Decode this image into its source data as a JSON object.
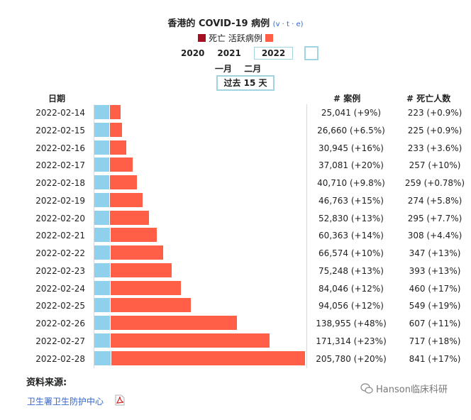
{
  "chart_data": {
    "type": "bar",
    "title": "香港的 COVID-19 病例",
    "title_links": "v · t · e",
    "legend": [
      {
        "label": "死亡",
        "color": "#a50f22"
      },
      {
        "label": "活跃病例",
        "color": "#ff5e47"
      }
    ],
    "recovered_color": "#8fd0ec",
    "years": [
      "2020",
      "2021",
      "2022"
    ],
    "selected_year": "2022",
    "months": [
      "一月",
      "二月"
    ],
    "range_label": "过去 15 天",
    "column_headers": {
      "date": "日期",
      "cases": "# 案例",
      "deaths": "# 死亡人数"
    },
    "dates": [
      "2022-02-14",
      "2022-02-15",
      "2022-02-16",
      "2022-02-17",
      "2022-02-18",
      "2022-02-19",
      "2022-02-20",
      "2022-02-21",
      "2022-02-22",
      "2022-02-23",
      "2022-02-24",
      "2022-02-25",
      "2022-02-26",
      "2022-02-27",
      "2022-02-28"
    ],
    "cases": [
      25041,
      26660,
      30945,
      37081,
      40710,
      46763,
      52830,
      60363,
      66574,
      75248,
      84046,
      94056,
      138955,
      171314,
      205780
    ],
    "recovered": [
      14300,
      14400,
      14500,
      14600,
      14700,
      14800,
      14900,
      15000,
      15100,
      15200,
      15300,
      15400,
      15500,
      15600,
      15700
    ],
    "deaths": [
      223,
      225,
      233,
      257,
      259,
      274,
      295,
      308,
      347,
      393,
      460,
      549,
      607,
      717,
      841
    ],
    "cases_text": [
      "25,041 (+9%)",
      "26,660 (+6.5%)",
      "30,945 (+16%)",
      "37,081 (+20%)",
      "40,710 (+9.8%)",
      "46,763 (+15%)",
      "52,830 (+13%)",
      "60,363 (+14%)",
      "66,574 (+10%)",
      "75,248 (+13%)",
      "84,046 (+12%)",
      "94,056 (+12%)",
      "138,955 (+48%)",
      "171,314 (+23%)",
      "205,780 (+20%)"
    ],
    "deaths_text": [
      "223 (+0.9%)",
      "225 (+0.9%)",
      "233 (+3.6%)",
      "257 (+10%)",
      "259 (+0.78%)",
      "274 (+5.8%)",
      "295 (+7.7%)",
      "308 (+4.4%)",
      "347 (+13%)",
      "393 (+13%)",
      "460 (+17%)",
      "549 (+19%)",
      "607 (+11%)",
      "717 (+18%)",
      "841 (+17%)"
    ]
  },
  "source": {
    "label": "资料来源:",
    "link": "卫生署卫生防护中心"
  },
  "watermark": "Hanson临床科研"
}
